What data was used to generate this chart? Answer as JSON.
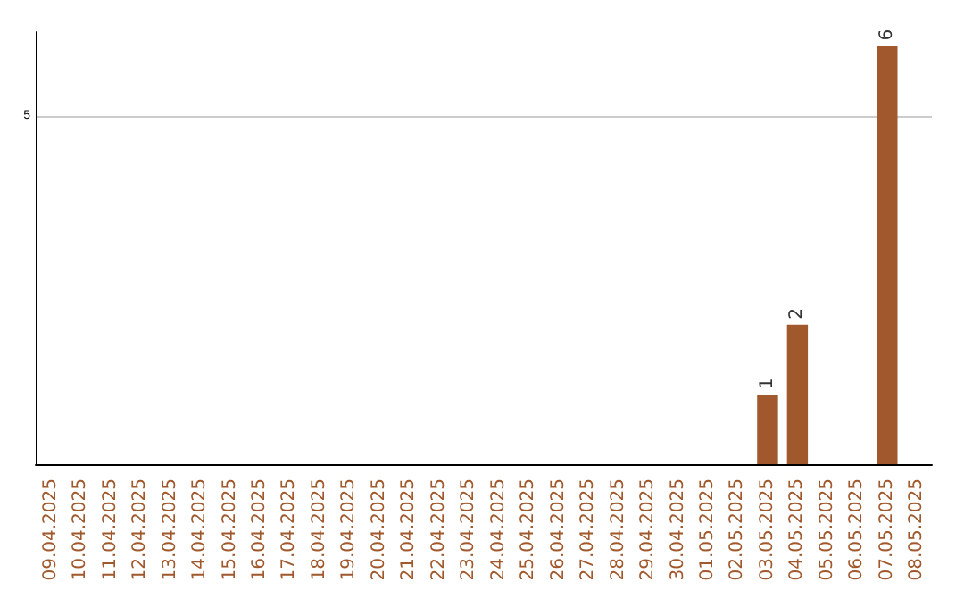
{
  "chart_data": {
    "type": "bar",
    "categories": [
      "09.04.2025",
      "10.04.2025",
      "11.04.2025",
      "12.04.2025",
      "13.04.2025",
      "14.04.2025",
      "15.04.2025",
      "16.04.2025",
      "17.04.2025",
      "18.04.2025",
      "19.04.2025",
      "20.04.2025",
      "21.04.2025",
      "22.04.2025",
      "23.04.2025",
      "24.04.2025",
      "25.04.2025",
      "26.04.2025",
      "27.04.2025",
      "28.04.2025",
      "29.04.2025",
      "30.04.2025",
      "01.05.2025",
      "02.05.2025",
      "03.05.2025",
      "04.05.2025",
      "05.05.2025",
      "06.05.2025",
      "07.05.2025",
      "08.05.2025"
    ],
    "values": [
      null,
      null,
      null,
      null,
      null,
      null,
      null,
      null,
      null,
      null,
      null,
      null,
      null,
      null,
      null,
      null,
      null,
      null,
      null,
      null,
      null,
      null,
      null,
      null,
      1,
      2,
      null,
      null,
      6,
      null
    ],
    "color": "#a0582c",
    "ylim": [
      0,
      6.2
    ],
    "yticks": [
      5
    ],
    "grid": "y",
    "data_labels": true
  }
}
